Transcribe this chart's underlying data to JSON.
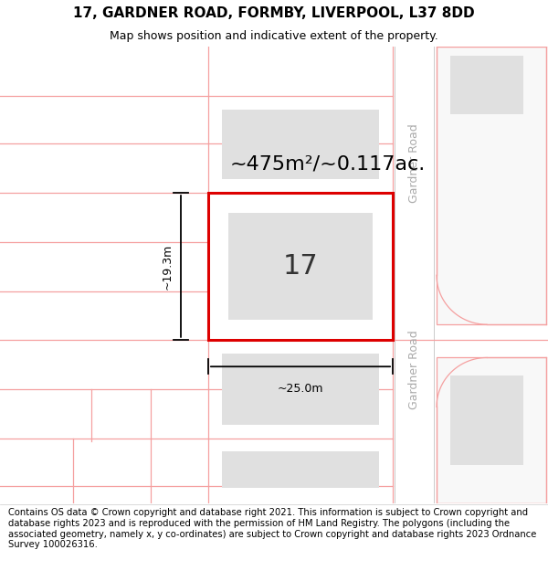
{
  "title_line1": "17, GARDNER ROAD, FORMBY, LIVERPOOL, L37 8DD",
  "title_line2": "Map shows position and indicative extent of the property.",
  "footer_text": "Contains OS data © Crown copyright and database right 2021. This information is subject to Crown copyright and database rights 2023 and is reproduced with the permission of HM Land Registry. The polygons (including the associated geometry, namely x, y co-ordinates) are subject to Crown copyright and database rights 2023 Ordnance Survey 100026316.",
  "area_label": "~475m²/~0.117ac.",
  "width_label": "~25.0m",
  "height_label": "~19.3m",
  "property_number": "17",
  "background_color": "#ffffff",
  "map_bg_color": "#ffffff",
  "plot_outline_color": "#dd0000",
  "building_fill_color": "#e0e0e0",
  "neighbor_line_color": "#f5a0a0",
  "road_label_color": "#aaaaaa",
  "title_fontsize": 11,
  "subtitle_fontsize": 9,
  "footer_fontsize": 7.2,
  "area_fontsize": 16,
  "number_fontsize": 22,
  "dim_fontsize": 9,
  "road_fontsize": 9
}
